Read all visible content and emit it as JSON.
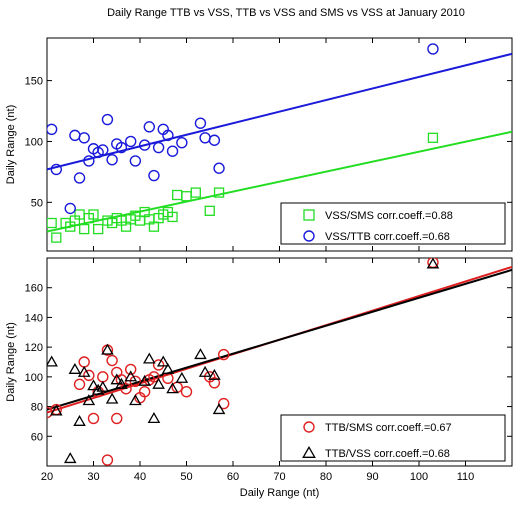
{
  "figure_title": "Daily Range TTB vs VSS, TTB vs VSS  and SMS vs VSS at January  2010",
  "chart_data": [
    {
      "type": "scatter",
      "title": "",
      "xlabel": "",
      "ylabel": "Daily Range (nt)",
      "xlim": [
        20,
        120
      ],
      "ylim": [
        10,
        185
      ],
      "yticks": [
        50,
        100,
        150
      ],
      "grid": false,
      "legend_position": "bottom-right",
      "series": [
        {
          "name": "VSS/SMS corr.coeff.=0.88",
          "marker": "square",
          "color": "#22dd22",
          "points": [
            [
              21,
              33
            ],
            [
              22,
              21
            ],
            [
              24,
              33
            ],
            [
              25,
              30
            ],
            [
              26,
              35
            ],
            [
              27,
              40
            ],
            [
              28,
              28
            ],
            [
              29,
              37
            ],
            [
              30,
              40
            ],
            [
              31,
              28
            ],
            [
              33,
              35
            ],
            [
              34,
              33
            ],
            [
              35,
              37
            ],
            [
              36,
              35
            ],
            [
              37,
              30
            ],
            [
              38,
              36
            ],
            [
              39,
              39
            ],
            [
              40,
              35
            ],
            [
              41,
              42
            ],
            [
              42,
              36
            ],
            [
              43,
              30
            ],
            [
              44,
              37
            ],
            [
              45,
              40
            ],
            [
              46,
              42
            ],
            [
              47,
              38
            ],
            [
              48,
              56
            ],
            [
              50,
              55
            ],
            [
              52,
              58
            ],
            [
              55,
              43
            ],
            [
              57,
              58
            ],
            [
              103,
              103
            ]
          ],
          "fit": [
            [
              20,
              26
            ],
            [
              120,
              108
            ]
          ]
        },
        {
          "name": "VSS/TTB corr.coeff.=0.68",
          "marker": "circle",
          "color": "#1a1adb",
          "points": [
            [
              21,
              110
            ],
            [
              22,
              77
            ],
            [
              25,
              45
            ],
            [
              26,
              105
            ],
            [
              27,
              70
            ],
            [
              28,
              103
            ],
            [
              29,
              84
            ],
            [
              30,
              94
            ],
            [
              31,
              91
            ],
            [
              32,
              93
            ],
            [
              33,
              118
            ],
            [
              34,
              85
            ],
            [
              35,
              98
            ],
            [
              36,
              95
            ],
            [
              38,
              100
            ],
            [
              39,
              84
            ],
            [
              41,
              97
            ],
            [
              42,
              112
            ],
            [
              43,
              72
            ],
            [
              44,
              95
            ],
            [
              45,
              110
            ],
            [
              46,
              105
            ],
            [
              47,
              92
            ],
            [
              49,
              99
            ],
            [
              53,
              115
            ],
            [
              54,
              103
            ],
            [
              56,
              101
            ],
            [
              57,
              78
            ],
            [
              103,
              176
            ]
          ],
          "fit": [
            [
              20,
              77
            ],
            [
              120,
              172
            ]
          ]
        }
      ]
    },
    {
      "type": "scatter",
      "title": "",
      "xlabel": "Daily Range (nt)",
      "ylabel": "Daily Range (nt)",
      "xlim": [
        20,
        120
      ],
      "ylim": [
        40,
        180
      ],
      "xticks": [
        20,
        30,
        40,
        50,
        60,
        70,
        80,
        90,
        100,
        110
      ],
      "yticks": [
        60,
        80,
        100,
        120,
        140,
        160
      ],
      "grid": false,
      "legend_position": "bottom-right",
      "series": [
        {
          "name": "TTB/SMS corr.coeff.=0.67",
          "marker": "circle",
          "color": "#e02020",
          "points": [
            [
              20,
              76
            ],
            [
              22,
              78
            ],
            [
              27,
              95
            ],
            [
              28,
              110
            ],
            [
              29,
              101
            ],
            [
              30,
              72
            ],
            [
              31,
              90
            ],
            [
              32,
              100
            ],
            [
              33,
              118
            ],
            [
              34,
              111
            ],
            [
              35,
              103
            ],
            [
              35,
              72
            ],
            [
              36,
              98
            ],
            [
              37,
              92
            ],
            [
              38,
              105
            ],
            [
              39,
              97
            ],
            [
              40,
              86
            ],
            [
              41,
              90
            ],
            [
              42,
              98
            ],
            [
              43,
              100
            ],
            [
              44,
              108
            ],
            [
              46,
              99
            ],
            [
              48,
              93
            ],
            [
              50,
              90
            ],
            [
              55,
              100
            ],
            [
              56,
              96
            ],
            [
              58,
              115
            ],
            [
              58,
              82
            ],
            [
              33,
              44
            ],
            [
              103,
              177
            ]
          ],
          "fit": [
            [
              20,
              76
            ],
            [
              120,
              174
            ]
          ]
        },
        {
          "name": "TTB/VSS corr.coeff.=0.68",
          "marker": "triangle",
          "color": "#000000",
          "points": [
            [
              21,
              110
            ],
            [
              22,
              77
            ],
            [
              25,
              45
            ],
            [
              26,
              105
            ],
            [
              27,
              70
            ],
            [
              28,
              103
            ],
            [
              29,
              84
            ],
            [
              30,
              94
            ],
            [
              31,
              91
            ],
            [
              32,
              93
            ],
            [
              33,
              118
            ],
            [
              34,
              85
            ],
            [
              35,
              98
            ],
            [
              36,
              95
            ],
            [
              38,
              100
            ],
            [
              39,
              84
            ],
            [
              41,
              97
            ],
            [
              42,
              112
            ],
            [
              43,
              72
            ],
            [
              44,
              95
            ],
            [
              45,
              110
            ],
            [
              46,
              105
            ],
            [
              47,
              92
            ],
            [
              49,
              99
            ],
            [
              53,
              115
            ],
            [
              54,
              103
            ],
            [
              56,
              101
            ],
            [
              57,
              78
            ],
            [
              103,
              176
            ]
          ],
          "fit": [
            [
              20,
              78
            ],
            [
              120,
              172
            ]
          ]
        }
      ]
    }
  ]
}
